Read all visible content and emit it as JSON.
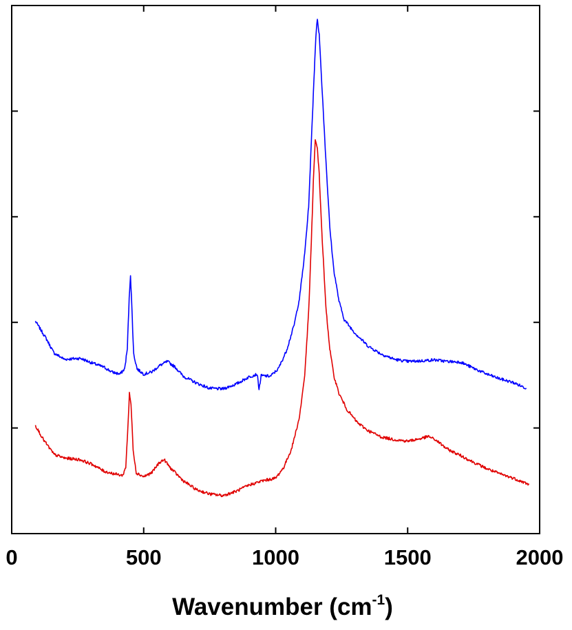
{
  "chart_data": {
    "type": "line",
    "title": "",
    "xlabel": "Wavenumber (cm",
    "xlabel_superscript": "-1",
    "xlabel_close": ")",
    "ylabel": "",
    "xlim": [
      0,
      2000
    ],
    "ylim": [
      0,
      100
    ],
    "x_ticks": [
      0,
      500,
      1000,
      1500,
      2000
    ],
    "x_tick_labels": [
      "0",
      "500",
      "1000",
      "1500",
      "2000"
    ],
    "y_ticks": [
      20,
      40,
      60,
      80,
      100
    ],
    "y_tick_labels_shown": false,
    "grid": false,
    "legend": "none",
    "series": [
      {
        "color": "#0000ff",
        "points": [
          [
            90,
            40.2
          ],
          [
            130,
            37.0
          ],
          [
            160,
            34.2
          ],
          [
            200,
            33.0
          ],
          [
            260,
            33.2
          ],
          [
            300,
            32.4
          ],
          [
            350,
            31.5
          ],
          [
            380,
            30.6
          ],
          [
            410,
            30.2
          ],
          [
            428,
            31.2
          ],
          [
            438,
            35.0
          ],
          [
            445,
            44.5
          ],
          [
            450,
            49.0
          ],
          [
            455,
            43.0
          ],
          [
            462,
            34.0
          ],
          [
            475,
            31.2
          ],
          [
            500,
            30.2
          ],
          [
            530,
            30.6
          ],
          [
            560,
            31.8
          ],
          [
            590,
            32.6
          ],
          [
            620,
            31.5
          ],
          [
            650,
            29.8
          ],
          [
            700,
            28.5
          ],
          [
            750,
            27.5
          ],
          [
            800,
            27.4
          ],
          [
            850,
            28.3
          ],
          [
            900,
            29.7
          ],
          [
            930,
            30.2
          ],
          [
            937,
            27.3
          ],
          [
            945,
            29.9
          ],
          [
            980,
            29.8
          ],
          [
            1010,
            31.2
          ],
          [
            1040,
            34.5
          ],
          [
            1070,
            39.5
          ],
          [
            1090,
            44.5
          ],
          [
            1110,
            53.0
          ],
          [
            1125,
            62.0
          ],
          [
            1135,
            74.0
          ],
          [
            1145,
            86.0
          ],
          [
            1152,
            94.0
          ],
          [
            1158,
            97.5
          ],
          [
            1165,
            94.5
          ],
          [
            1175,
            85.0
          ],
          [
            1190,
            71.0
          ],
          [
            1205,
            58.0
          ],
          [
            1220,
            50.0
          ],
          [
            1240,
            44.0
          ],
          [
            1260,
            40.5
          ],
          [
            1300,
            38.0
          ],
          [
            1350,
            35.5
          ],
          [
            1400,
            34.0
          ],
          [
            1450,
            33.0
          ],
          [
            1500,
            32.6
          ],
          [
            1550,
            32.7
          ],
          [
            1600,
            32.9
          ],
          [
            1650,
            32.6
          ],
          [
            1700,
            32.5
          ],
          [
            1750,
            31.3
          ],
          [
            1800,
            30.2
          ],
          [
            1850,
            29.3
          ],
          [
            1900,
            28.6
          ],
          [
            1950,
            27.5
          ]
        ]
      },
      {
        "color": "#e00000",
        "points": [
          [
            90,
            20.5
          ],
          [
            120,
            17.8
          ],
          [
            160,
            15.0
          ],
          [
            200,
            14.3
          ],
          [
            260,
            14.0
          ],
          [
            310,
            13.0
          ],
          [
            350,
            11.8
          ],
          [
            390,
            11.3
          ],
          [
            420,
            11.0
          ],
          [
            432,
            12.5
          ],
          [
            440,
            20.0
          ],
          [
            446,
            26.5
          ],
          [
            452,
            24.5
          ],
          [
            460,
            16.0
          ],
          [
            472,
            11.5
          ],
          [
            500,
            10.8
          ],
          [
            530,
            11.5
          ],
          [
            560,
            13.5
          ],
          [
            578,
            14.0
          ],
          [
            600,
            12.5
          ],
          [
            650,
            10.0
          ],
          [
            700,
            8.3
          ],
          [
            750,
            7.5
          ],
          [
            800,
            7.2
          ],
          [
            850,
            8.0
          ],
          [
            900,
            9.2
          ],
          [
            950,
            10.0
          ],
          [
            1000,
            10.5
          ],
          [
            1030,
            12.5
          ],
          [
            1060,
            16.0
          ],
          [
            1090,
            22.0
          ],
          [
            1110,
            30.0
          ],
          [
            1125,
            42.0
          ],
          [
            1135,
            55.0
          ],
          [
            1143,
            67.0
          ],
          [
            1150,
            74.5
          ],
          [
            1158,
            73.0
          ],
          [
            1165,
            68.0
          ],
          [
            1175,
            57.0
          ],
          [
            1190,
            43.0
          ],
          [
            1205,
            35.0
          ],
          [
            1220,
            30.0
          ],
          [
            1240,
            26.5
          ],
          [
            1270,
            23.5
          ],
          [
            1310,
            21.0
          ],
          [
            1350,
            19.5
          ],
          [
            1400,
            18.3
          ],
          [
            1450,
            17.8
          ],
          [
            1500,
            17.5
          ],
          [
            1550,
            18.0
          ],
          [
            1580,
            18.4
          ],
          [
            1610,
            17.6
          ],
          [
            1650,
            16.0
          ],
          [
            1700,
            14.8
          ],
          [
            1750,
            13.5
          ],
          [
            1800,
            12.3
          ],
          [
            1850,
            11.3
          ],
          [
            1900,
            10.5
          ],
          [
            1950,
            9.5
          ],
          [
            1960,
            9.3
          ]
        ]
      }
    ]
  }
}
